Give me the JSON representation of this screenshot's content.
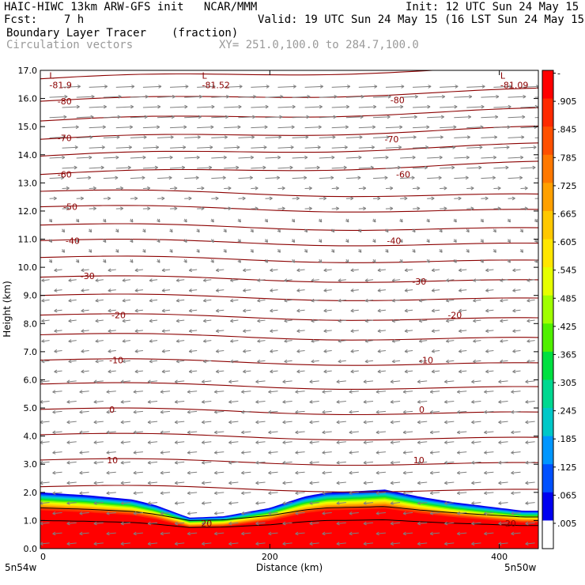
{
  "header": {
    "line1_left": "HAIC-HIWC 13km ARW-GFS init   NCAR/MMM",
    "line1_right": "Init: 12 UTC Sun 24 May 15",
    "line2_left": "Fcst:    7 h",
    "line2_right": "Valid: 19 UTC Sun 24 May 15 (16 LST Sun 24 May 15)",
    "field_name": "Boundary Layer Tracer",
    "field_units": "(fraction)",
    "vector_label": "Circulation vectors",
    "xy_label": "XY= 251.0,100.0 to 284.7,100.0"
  },
  "chart_data": {
    "type": "heatmap",
    "xlabel": "Distance (km)",
    "ylabel": "Height (km)",
    "xlim": [
      0,
      434
    ],
    "ylim": [
      0,
      17
    ],
    "x_ticks": [
      0,
      200,
      400
    ],
    "y_ticks": [
      "0.0",
      "1.0",
      "2.0",
      "3.0",
      "4.0",
      "5.0",
      "6.0",
      "7.0",
      "8.0",
      "9.0",
      "10.0",
      "11.0",
      "12.0",
      "13.0",
      "14.0",
      "15.0",
      "16.0",
      "17.0"
    ],
    "x_end_labels": [
      "5n54w",
      "5n50w"
    ],
    "tracer_top_height_km": {
      "x": [
        0,
        40,
        80,
        100,
        120,
        130,
        160,
        200,
        230,
        250,
        280,
        300,
        330,
        360,
        390,
        420,
        434
      ],
      "top": [
        2.0,
        1.9,
        1.75,
        1.55,
        1.25,
        1.1,
        1.15,
        1.45,
        1.85,
        2.0,
        2.05,
        2.1,
        1.85,
        1.65,
        1.5,
        1.35,
        1.35
      ]
    },
    "temperature_contours_C": {
      "levels": [
        -80,
        -70,
        -60,
        -50,
        -40,
        -30,
        -20,
        -10,
        0,
        10,
        20
      ],
      "labels": [
        {
          "text": "-80",
          "x": 15,
          "y": 15.9
        },
        {
          "text": "-80",
          "x": 305,
          "y": 15.95
        },
        {
          "text": "-70",
          "x": 15,
          "y": 14.6
        },
        {
          "text": "-70",
          "x": 300,
          "y": 14.55
        },
        {
          "text": "-60",
          "x": 15,
          "y": 13.3
        },
        {
          "text": "-60",
          "x": 310,
          "y": 13.3
        },
        {
          "text": "-50",
          "x": 20,
          "y": 12.15
        },
        {
          "text": "-40",
          "x": 22,
          "y": 10.95
        },
        {
          "text": "-40",
          "x": 302,
          "y": 10.95
        },
        {
          "text": "-30",
          "x": 35,
          "y": 9.7
        },
        {
          "text": "-30",
          "x": 324,
          "y": 9.5
        },
        {
          "text": "-20",
          "x": 62,
          "y": 8.3
        },
        {
          "text": "-20",
          "x": 355,
          "y": 8.3
        },
        {
          "text": "-10",
          "x": 60,
          "y": 6.7
        },
        {
          "text": "-10",
          "x": 330,
          "y": 6.7
        },
        {
          "text": "0",
          "x": 60,
          "y": 4.95
        },
        {
          "text": "0",
          "x": 330,
          "y": 4.95
        },
        {
          "text": "10",
          "x": 58,
          "y": 3.15
        },
        {
          "text": "10",
          "x": 325,
          "y": 3.15
        },
        {
          "text": "20",
          "x": 140,
          "y": 0.9
        },
        {
          "text": "20",
          "x": 405,
          "y": 0.9
        }
      ]
    },
    "minima_labels": [
      {
        "mark": "L",
        "text": "-81.9",
        "x": 12,
        "y": 16.7
      },
      {
        "mark": "L",
        "text": "-81.52",
        "x": 145,
        "y": 16.7
      },
      {
        "mark": "L",
        "text": "-81.09",
        "x": 405,
        "y": 16.7
      }
    ],
    "colorbar": {
      "labels": [
        "-",
        ".905",
        ".845",
        ".785",
        ".725",
        ".665",
        ".605",
        ".545",
        ".485",
        ".425",
        ".365",
        ".305",
        ".245",
        ".185",
        ".125",
        ".065",
        ".005"
      ],
      "colors": [
        "#ff0000",
        "#fe2a00",
        "#ff5000",
        "#ff7800",
        "#ffa000",
        "#ffc800",
        "#ffe600",
        "#e6ff00",
        "#a0ff00",
        "#50f000",
        "#00e040",
        "#00d890",
        "#00c8c8",
        "#0096ff",
        "#0050ff",
        "#0000f0"
      ],
      "lowest_color": "#ffffff"
    }
  },
  "colors": {
    "contour": "#8b0000",
    "vector": "#7f7f7f"
  }
}
